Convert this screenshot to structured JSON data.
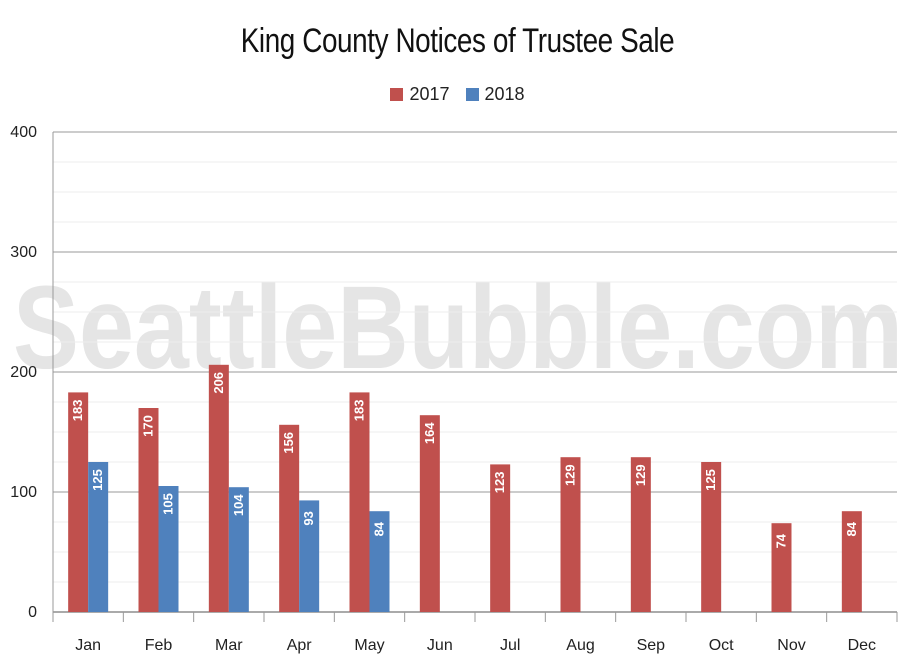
{
  "watermark": "SeattleBubble.com",
  "chart_data": {
    "type": "bar",
    "title": "King County Notices of Trustee Sale",
    "categories": [
      "Jan",
      "Feb",
      "Mar",
      "Apr",
      "May",
      "Jun",
      "Jul",
      "Aug",
      "Sep",
      "Oct",
      "Nov",
      "Dec"
    ],
    "series": [
      {
        "name": "2017",
        "color": "#c0504d",
        "values": [
          183,
          170,
          206,
          156,
          183,
          164,
          123,
          129,
          129,
          125,
          74,
          84
        ]
      },
      {
        "name": "2018",
        "color": "#4f81bd",
        "values": [
          125,
          105,
          104,
          93,
          84,
          null,
          null,
          null,
          null,
          null,
          null,
          null
        ]
      }
    ],
    "ylim": [
      0,
      400
    ],
    "yticks": [
      0,
      100,
      200,
      300,
      400
    ],
    "grid": true,
    "legend_position": "top-center"
  }
}
